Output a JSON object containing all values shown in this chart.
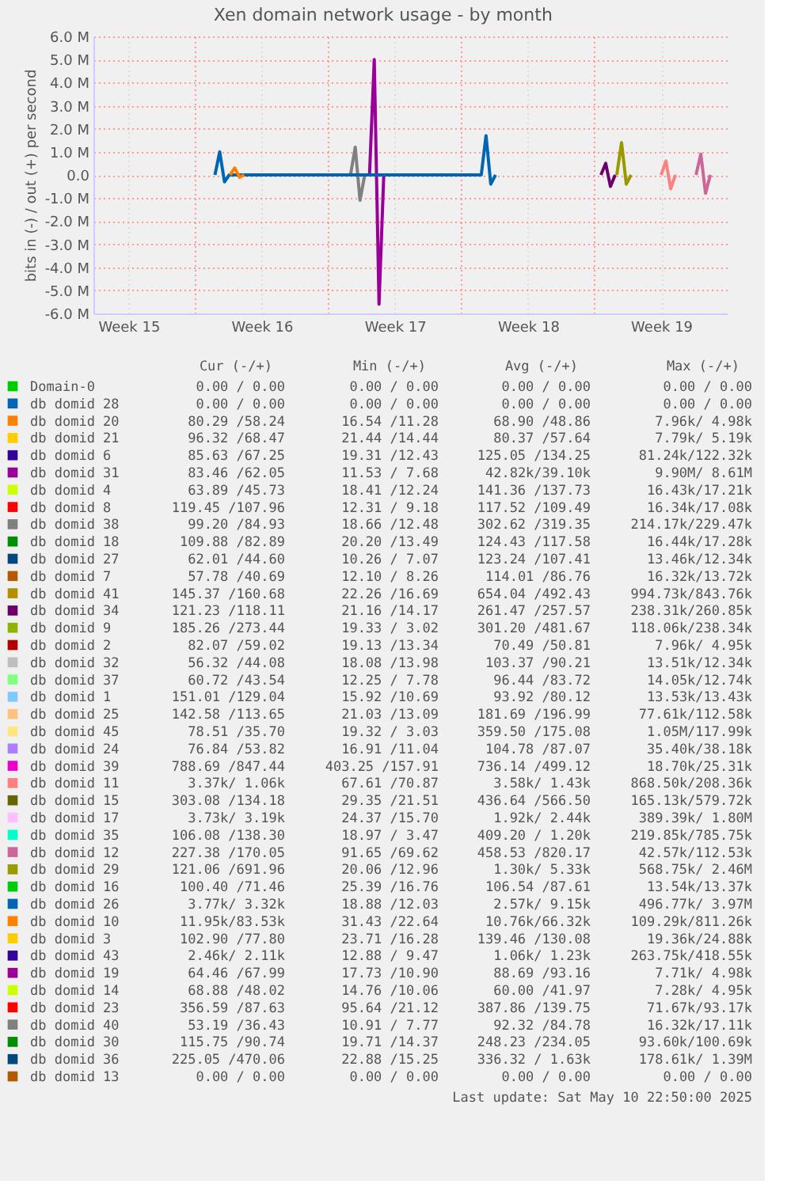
{
  "chart_data": {
    "type": "line",
    "title": "Xen domain network usage - by month",
    "ylabel": "bits in (-) / out (+) per second",
    "xlim": [
      "2025-04-07T15:40",
      "2025-05-10T22:50"
    ],
    "xticks": [
      {
        "value": "2025-04-09T12:00",
        "label": "Week 15"
      },
      {
        "value": "2025-04-13",
        "label": null
      },
      {
        "value": "2025-04-16T12:00",
        "label": "Week 16"
      },
      {
        "value": "2025-04-20",
        "label": null
      },
      {
        "value": "2025-04-23T12:00",
        "label": "Week 17"
      },
      {
        "value": "2025-04-27",
        "label": null
      },
      {
        "value": "2025-04-30T12:00",
        "label": "Week 18"
      },
      {
        "value": "2025-05-04",
        "label": null
      },
      {
        "value": "2025-05-07T12:00",
        "label": "Week 19"
      }
    ],
    "ylim": [
      -6000000,
      6000000
    ],
    "yticks": [
      {
        "value": -6000000,
        "label": "-6.0 M"
      },
      {
        "value": -5000000,
        "label": "-5.0 M"
      },
      {
        "value": -4000000,
        "label": "-4.0 M"
      },
      {
        "value": -3000000,
        "label": "-3.0 M"
      },
      {
        "value": -2000000,
        "label": "-2.0 M"
      },
      {
        "value": -1000000,
        "label": "-1.0 M"
      },
      {
        "value": 0,
        "label": "0.0"
      },
      {
        "value": 1000000,
        "label": "1.0 M"
      },
      {
        "value": 2000000,
        "label": "2.0 M"
      },
      {
        "value": 3000000,
        "label": "3.0 M"
      },
      {
        "value": 4000000,
        "label": "4.0 M"
      },
      {
        "value": 5000000,
        "label": "5.0 M"
      },
      {
        "value": 6000000,
        "label": "6.0 M"
      }
    ],
    "grid": true,
    "legend": "bottom",
    "series": [
      {
        "name": "Domain-0",
        "color": "#00cc00",
        "values": [
          null
        ]
      },
      {
        "name": "db domid 28",
        "color": "#0066b3",
        "values": [
          null
        ]
      },
      {
        "name": "db domid 20",
        "color": "#ff8000",
        "values": [
          null
        ]
      },
      {
        "name": "db domid 21",
        "color": "#ffcc00",
        "values": [
          null
        ]
      },
      {
        "name": "db domid 6",
        "color": "#330099",
        "values": [
          null
        ]
      },
      {
        "name": "db domid 31",
        "color": "#990099",
        "x": [
          "2025-04-22T04:00",
          "2025-04-22T10:00",
          "2025-04-22T16:00",
          "2025-04-22T22:00"
        ],
        "values": [
          0,
          5000000,
          -5600000,
          0
        ]
      },
      {
        "name": "db domid 4",
        "color": "#ccff00",
        "values": [
          null
        ]
      },
      {
        "name": "db domid 8",
        "color": "#ff0000",
        "values": [
          null
        ]
      },
      {
        "name": "db domid 38",
        "color": "#808080",
        "x": [
          "2025-04-21T04:00",
          "2025-04-21T10:00",
          "2025-04-21T16:00",
          "2025-04-21T22:00"
        ],
        "values": [
          0,
          1200000,
          -1100000,
          0
        ]
      },
      {
        "name": "db domid 18",
        "color": "#008f00",
        "values": [
          null
        ]
      },
      {
        "name": "db domid 27",
        "color": "#00487d",
        "values": [
          null
        ]
      },
      {
        "name": "db domid 7",
        "color": "#b35a00",
        "values": [
          null
        ]
      },
      {
        "name": "db domid 41",
        "color": "#b38f00",
        "values": [
          null
        ]
      },
      {
        "name": "db domid 34",
        "color": "#6b006b",
        "x": [
          "2025-05-04T08:00",
          "2025-05-04T14:00",
          "2025-05-04T20:00",
          "2025-05-05T02:00"
        ],
        "values": [
          0,
          500000,
          -500000,
          0
        ]
      },
      {
        "name": "db domid 9",
        "color": "#8fb300",
        "values": [
          null
        ]
      },
      {
        "name": "db domid 2",
        "color": "#b30000",
        "values": [
          null
        ]
      },
      {
        "name": "db domid 32",
        "color": "#bebebe",
        "values": [
          null
        ]
      },
      {
        "name": "db domid 37",
        "color": "#80ff80",
        "values": [
          null
        ]
      },
      {
        "name": "db domid 1",
        "color": "#80c9ff",
        "values": [
          null
        ]
      },
      {
        "name": "db domid 25",
        "color": "#ffc080",
        "values": [
          null
        ]
      },
      {
        "name": "db domid 45",
        "color": "#ffe680",
        "values": [
          null
        ]
      },
      {
        "name": "db domid 24",
        "color": "#aa80ff",
        "values": [
          null
        ]
      },
      {
        "name": "db domid 39",
        "color": "#ee00cc",
        "values": [
          null
        ]
      },
      {
        "name": "db domid 11",
        "color": "#ff8080",
        "x": [
          "2025-05-07T12:00",
          "2025-05-07T18:00",
          "2025-05-08T00:00",
          "2025-05-08T06:00"
        ],
        "values": [
          0,
          600000,
          -600000,
          0
        ]
      },
      {
        "name": "db domid 15",
        "color": "#666600",
        "values": [
          null
        ]
      },
      {
        "name": "db domid 17",
        "color": "#ffbfff",
        "values": [
          null
        ]
      },
      {
        "name": "db domid 35",
        "color": "#00ffcc",
        "values": [
          null
        ]
      },
      {
        "name": "db domid 12",
        "color": "#cc6699",
        "x": [
          "2025-05-09T08:00",
          "2025-05-09T14:00",
          "2025-05-09T20:00",
          "2025-05-10T02:00"
        ],
        "values": [
          0,
          900000,
          -800000,
          0
        ]
      },
      {
        "name": "db domid 29",
        "color": "#999900",
        "x": [
          "2025-05-05T04:00",
          "2025-05-05T10:00",
          "2025-05-05T16:00",
          "2025-05-05T22:00"
        ],
        "values": [
          0,
          1400000,
          -400000,
          0
        ]
      },
      {
        "name": "db domid 16",
        "color": "#00cc00",
        "values": [
          null
        ]
      },
      {
        "name": "db domid 26",
        "color": "#0066b3",
        "x": [
          "2025-04-14T01:00",
          "2025-04-14T07:00",
          "2025-04-14T13:00",
          "2025-04-14T19:00",
          "2025-04-28T01:00",
          "2025-04-28T07:00",
          "2025-04-28T13:00",
          "2025-04-28T19:00"
        ],
        "values": [
          0,
          1000000,
          -300000,
          0,
          0,
          1700000,
          -400000,
          0
        ]
      },
      {
        "name": "db domid 10",
        "color": "#ff8000",
        "x": [
          "2025-04-14T20:00",
          "2025-04-15T02:00",
          "2025-04-15T08:00",
          "2025-04-15T14:00"
        ],
        "values": [
          0,
          300000,
          -100000,
          0
        ]
      },
      {
        "name": "db domid 3",
        "color": "#ffcc00",
        "values": [
          null
        ]
      },
      {
        "name": "db domid 43",
        "color": "#330099",
        "values": [
          null
        ]
      },
      {
        "name": "db domid 19",
        "color": "#990099",
        "values": [
          null
        ]
      },
      {
        "name": "db domid 14",
        "color": "#ccff00",
        "values": [
          null
        ]
      },
      {
        "name": "db domid 23",
        "color": "#ff0000",
        "values": [
          null
        ]
      },
      {
        "name": "db domid 40",
        "color": "#808080",
        "values": [
          null
        ]
      },
      {
        "name": "db domid 30",
        "color": "#008f00",
        "values": [
          null
        ]
      },
      {
        "name": "db domid 36",
        "color": "#00487d",
        "values": [
          null
        ]
      },
      {
        "name": "db domid 13",
        "color": "#b35a00",
        "values": [
          null
        ]
      }
    ],
    "annotations": [
      "Cur (-/+)",
      "Min (-/+)",
      "Avg (-/+)",
      "Max (-/+)",
      "0.00 / 0.00",
      "0.00 / 0.00",
      "0.00 / 0.00",
      "0.00 / 0.00",
      "0.00 / 0.00",
      "0.00 / 0.00",
      "0.00 / 0.00",
      "0.00 / 0.00",
      "80.29 /58.24",
      "16.54 /11.28",
      "68.90 /48.86",
      "7.96k/ 4.98k",
      "96.32 /68.47",
      "21.44 /14.44",
      "80.37 /57.64",
      "7.79k/ 5.19k",
      "85.63 /67.25",
      "19.31 /12.43",
      "125.05 /134.25",
      "81.24k/122.32k",
      "83.46 /62.05",
      "11.53 / 7.68",
      "42.82k/39.10k",
      "9.90M/ 8.61M",
      "63.89 /45.73",
      "18.41 /12.24",
      "141.36 /137.73",
      "16.43k/17.21k",
      "119.45 /107.96",
      "12.31 / 9.18",
      "117.52 /109.49",
      "16.34k/17.08k",
      "99.20 /84.93",
      "18.66 /12.48",
      "302.62 /319.35",
      "214.17k/229.47k",
      "109.88 /82.89",
      "20.20 /13.49",
      "124.43 /117.58",
      "16.44k/17.28k",
      "62.01 /44.60",
      "10.26 / 7.07",
      "123.24 /107.41",
      "13.46k/12.34k",
      "57.78 /40.69",
      "12.10 / 8.26",
      "114.01 /86.76",
      "16.32k/13.72k",
      "145.37 /160.68",
      "22.26 /16.69",
      "654.04 /492.43",
      "994.73k/843.76k",
      "121.23 /118.11",
      "21.16 /14.17",
      "261.47 /257.57",
      "238.31k/260.85k",
      "185.26 /273.44",
      "19.33 / 3.02",
      "301.20 /481.67",
      "118.06k/238.34k",
      "82.07 /59.02",
      "19.13 /13.34",
      "70.49 /50.81",
      "7.96k/ 4.95k",
      "56.32 /44.08",
      "18.08 /13.98",
      "103.37 /90.21",
      "13.51k/12.34k",
      "60.72 /43.54",
      "12.25 / 7.78",
      "96.44 /83.72",
      "14.05k/12.74k",
      "151.01 /129.04",
      "15.92 /10.69",
      "93.92 /80.12",
      "13.53k/13.43k",
      "142.58 /113.65",
      "21.03 /13.09",
      "181.69 /196.99",
      "77.61k/112.58k",
      "78.51 /35.70",
      "19.32 / 3.03",
      "359.50 /175.08",
      "1.05M/117.99k",
      "76.84 /53.82",
      "16.91 /11.04",
      "104.78 /87.07",
      "35.40k/38.18k",
      "788.69 /847.44",
      "403.25 /157.91",
      "736.14 /499.12",
      "18.70k/25.31k",
      "3.37k/ 1.06k",
      "67.61 /70.87",
      "3.58k/ 1.43k",
      "868.50k/208.36k",
      "303.08 /134.18",
      "29.35 /21.51",
      "436.64 /566.50",
      "165.13k/579.72k",
      "3.73k/ 3.19k",
      "24.37 /15.70",
      "1.92k/ 2.44k",
      "389.39k/ 1.80M",
      "106.08 /138.30",
      "18.97 / 3.47",
      "409.20 / 1.20k",
      "219.85k/785.75k",
      "227.38 /170.05",
      "91.65 /69.62",
      "458.53 /820.17",
      "42.57k/112.53k",
      "121.06 /691.96",
      "20.06 /12.96",
      "1.30k/ 5.33k",
      "568.75k/ 2.46M",
      "100.40 /71.46",
      "25.39 /16.76",
      "106.54 /87.61",
      "13.54k/13.37k",
      "3.77k/ 3.32k",
      "18.88 /12.03",
      "2.57k/ 9.15k",
      "496.77k/ 3.97M",
      "11.95k/83.53k",
      "31.43 /22.64",
      "10.76k/66.32k",
      "109.29k/811.26k",
      "102.90 /77.80",
      "23.71 /16.28",
      "139.46 /130.08",
      "19.36k/24.88k",
      "2.46k/ 2.11k",
      "12.88 / 9.47",
      "1.06k/ 1.23k",
      "263.75k/418.55k",
      "64.46 /67.99",
      "17.73 /10.90",
      "88.69 /93.16",
      "7.71k/ 4.98k",
      "68.88 /48.02",
      "14.76 /10.06",
      "60.00 /41.97",
      "7.28k/ 4.95k",
      "356.59 /87.63",
      "95.64 /21.12",
      "387.86 /139.75",
      "71.67k/93.17k",
      "53.19 /36.43",
      "10.91 / 7.77",
      "92.32 /84.78",
      "16.32k/17.11k",
      "115.75 /90.74",
      "19.71 /14.37",
      "248.23 /234.05",
      "93.60k/100.69k",
      "225.05 /470.06",
      "22.88 /15.25",
      "336.32 / 1.63k",
      "178.61k/ 1.39M",
      "0.00 / 0.00",
      "0.00 / 0.00",
      "0.00 / 0.00",
      "0.00 / 0.00",
      "Last update:  Sat May 10 22:50:00 2025"
    ]
  }
}
